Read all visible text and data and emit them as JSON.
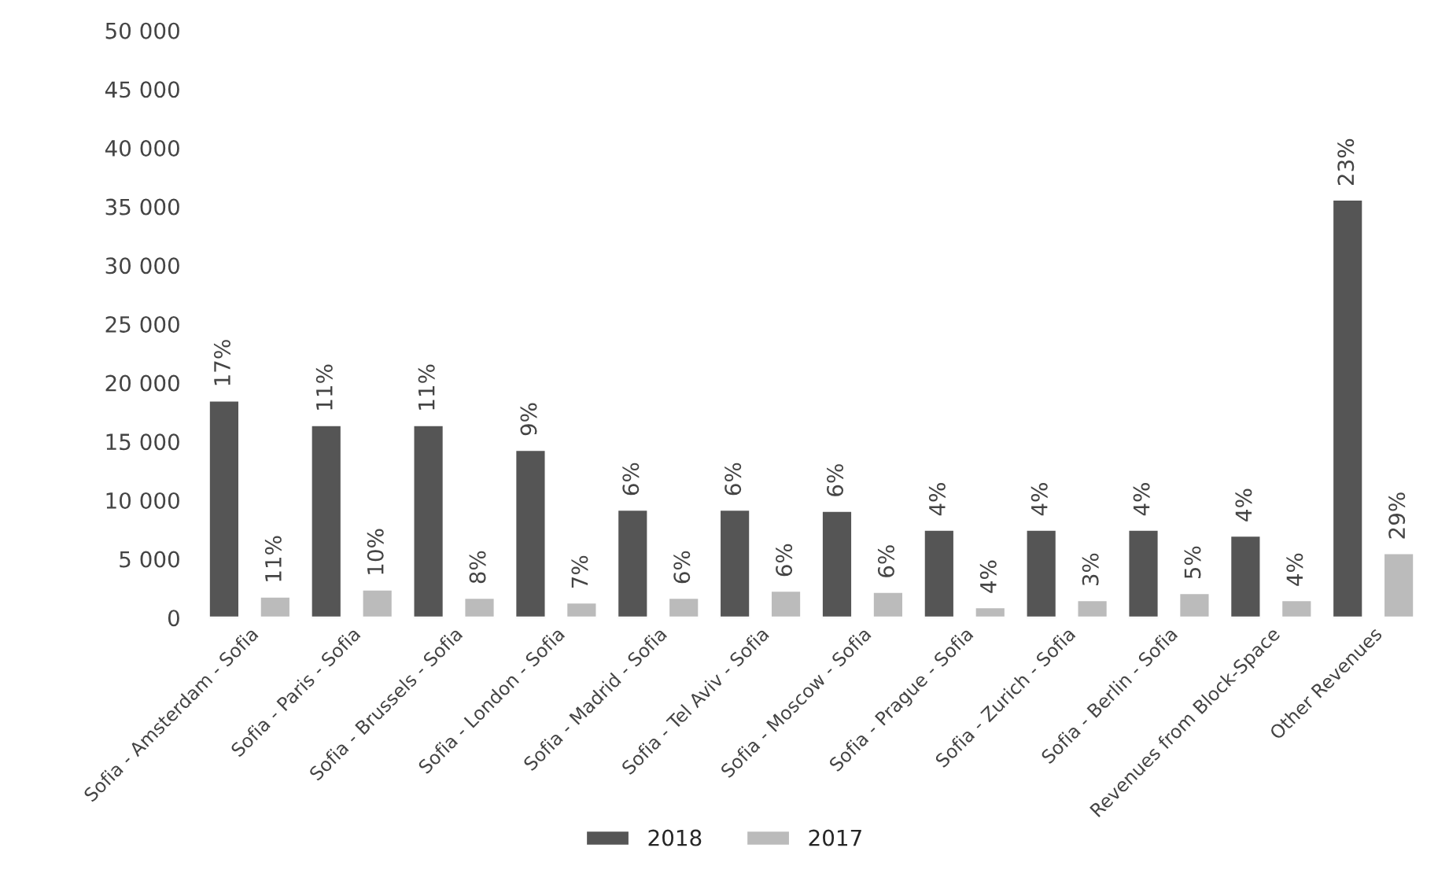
{
  "chart_data": {
    "type": "bar",
    "categories": [
      "Sofia - Amsterdam - Sofia",
      "Sofia - Paris - Sofia",
      "Sofia - Brussels - Sofia",
      "Sofia - London - Sofia",
      "Sofia - Madrid - Sofia",
      "Sofia - Tel Aviv - Sofia",
      "Sofia - Moscow - Sofia",
      "Sofia - Prague - Sofia",
      "Sofia - Zurich - Sofia",
      "Sofia - Berlin - Sofia",
      "Revenues from Block-Space",
      "Other Revenues"
    ],
    "series": [
      {
        "name": "2018",
        "color": "#555555",
        "values": [
          18500,
          16400,
          16400,
          14300,
          9200,
          9200,
          9100,
          7500,
          7500,
          7500,
          7000,
          35600
        ]
      },
      {
        "name": "2017",
        "color": "#bbbbbb",
        "values": [
          1800,
          2400,
          1700,
          1300,
          1700,
          2300,
          2200,
          900,
          1500,
          2100,
          1500,
          5500
        ]
      }
    ],
    "annotations": [
      "17%",
      "11%",
      "11%",
      "9%",
      "6%",
      "6%",
      "6%",
      "4%",
      "4%",
      "4%",
      "4%",
      "23%",
      "11%",
      "10%",
      "8%",
      "7%",
      "6%",
      "6%",
      "6%",
      "4%",
      "3%",
      "5%",
      "4%",
      "29%"
    ],
    "ylim": [
      0,
      50000
    ],
    "yticks": [
      {
        "value": 0,
        "label": "0"
      },
      {
        "value": 5000,
        "label": "5 000"
      },
      {
        "value": 10000,
        "label": "10 000"
      },
      {
        "value": 15000,
        "label": "15 000"
      },
      {
        "value": 20000,
        "label": "20 000"
      },
      {
        "value": 25000,
        "label": "25 000"
      },
      {
        "value": 30000,
        "label": "30 000"
      },
      {
        "value": 35000,
        "label": "35 000"
      },
      {
        "value": 40000,
        "label": "40 000"
      },
      {
        "value": 45000,
        "label": "45 000"
      },
      {
        "value": 50000,
        "label": "50 000"
      }
    ],
    "grid": false,
    "legend": "bottom"
  }
}
